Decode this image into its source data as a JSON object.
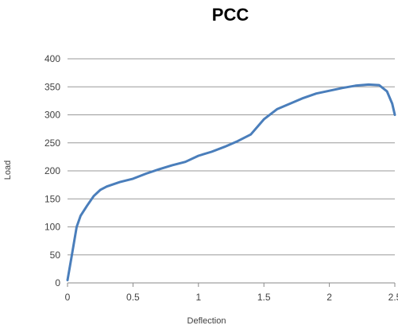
{
  "chart_data": {
    "type": "line",
    "title": "PCC",
    "xlabel": "Deflection",
    "ylabel": "Load",
    "xlim": [
      0,
      2.5
    ],
    "ylim": [
      0,
      400
    ],
    "x_ticks": [
      "0",
      "0.5",
      "1",
      "1.5",
      "2",
      "2.5"
    ],
    "y_ticks": [
      "0",
      "50",
      "100",
      "150",
      "200",
      "250",
      "300",
      "350",
      "400"
    ],
    "grid": "horizontal",
    "legend": "none",
    "series": [
      {
        "color": "#4a7ebb",
        "x": [
          0.0,
          0.03,
          0.07,
          0.1,
          0.15,
          0.2,
          0.25,
          0.3,
          0.4,
          0.5,
          0.6,
          0.7,
          0.8,
          0.9,
          1.0,
          1.1,
          1.2,
          1.3,
          1.4,
          1.5,
          1.6,
          1.7,
          1.8,
          1.9,
          2.0,
          2.1,
          2.2,
          2.3,
          2.38,
          2.44,
          2.48,
          2.5
        ],
        "y": [
          5,
          45,
          100,
          120,
          138,
          155,
          166,
          172,
          180,
          186,
          195,
          203,
          210,
          216,
          227,
          234,
          243,
          253,
          265,
          292,
          310,
          320,
          330,
          338,
          343,
          348,
          352,
          354,
          353,
          342,
          320,
          300
        ]
      }
    ]
  }
}
